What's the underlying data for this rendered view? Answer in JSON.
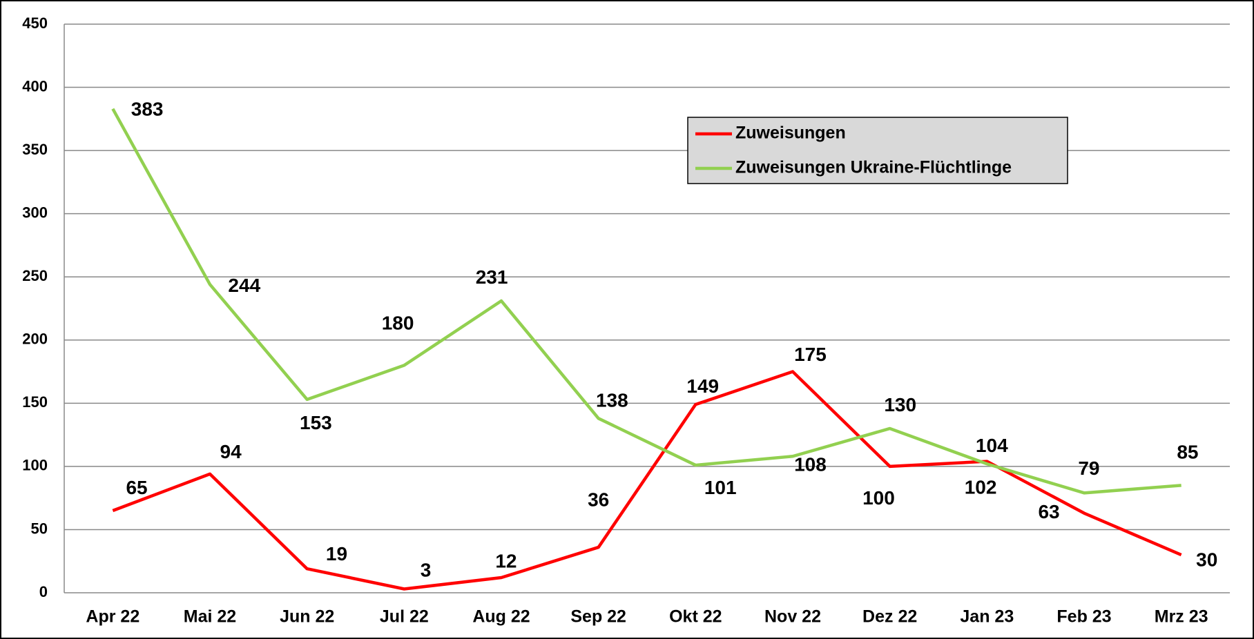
{
  "chart_data": {
    "type": "line",
    "categories": [
      "Apr 22",
      "Mai 22",
      "Jun 22",
      "Jul 22",
      "Aug 22",
      "Sep 22",
      "Okt 22",
      "Nov 22",
      "Dez 22",
      "Jan 23",
      "Feb 23",
      "Mrz 23"
    ],
    "series": [
      {
        "name": "Zuweisungen",
        "color": "#ff0000",
        "values": [
          65,
          94,
          19,
          3,
          12,
          36,
          149,
          175,
          100,
          104,
          63,
          30
        ]
      },
      {
        "name": "Zuweisungen Ukraine-Flüchtlinge",
        "color": "#92d050",
        "values": [
          383,
          244,
          153,
          180,
          231,
          138,
          101,
          108,
          130,
          102,
          79,
          85
        ]
      }
    ],
    "ylim": [
      0,
      450
    ],
    "yticks": [
      0,
      50,
      100,
      150,
      200,
      250,
      300,
      350,
      400,
      450
    ],
    "grid": true,
    "legend": "upper right"
  }
}
